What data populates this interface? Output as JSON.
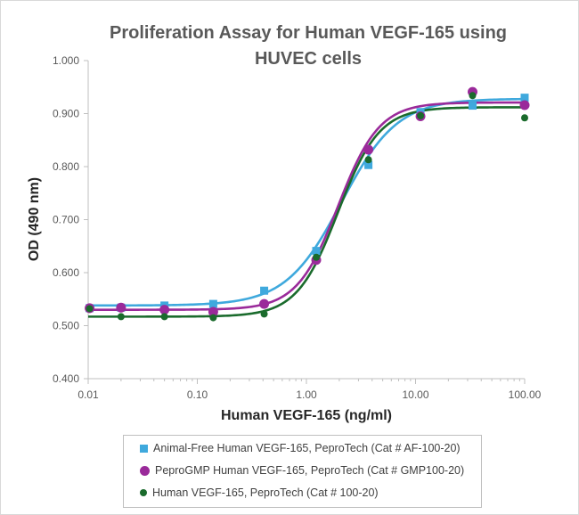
{
  "chart_data": {
    "type": "scatter",
    "title": "Proliferation Assay for Human VEGF-165 using HUVEC cells",
    "xlabel": "Human VEGF-165 (ng/ml)",
    "ylabel": "OD (490 nm)",
    "x_scale": "log",
    "xlim": [
      0.01,
      100
    ],
    "ylim": [
      0.4,
      1.0
    ],
    "x_ticks": [
      "0.01",
      "0.10",
      "1.00",
      "10.00",
      "100.00"
    ],
    "y_ticks": [
      "0.400",
      "0.500",
      "0.600",
      "0.700",
      "0.800",
      "0.900",
      "1.000"
    ],
    "grid": false,
    "legend_position": "bottom",
    "series": [
      {
        "name": "Animal-Free Human VEGF-165, PeproTech (Cat # AF-100-20)",
        "marker": "square",
        "color": "#3fa9dd",
        "x": [
          0.0103,
          0.02,
          0.05,
          0.14,
          0.41,
          1.23,
          3.7,
          11.1,
          33.3,
          100
        ],
        "y": [
          0.533,
          0.534,
          0.538,
          0.541,
          0.566,
          0.641,
          0.803,
          0.903,
          0.915,
          0.93
        ],
        "fit_curve": {
          "bottom": 0.538,
          "top": 0.928,
          "ec50": 2.1,
          "hill": 1.7
        }
      },
      {
        "name": "PeproGMP Human VEGF-165, PeproTech (Cat # GMP100-20)",
        "marker": "circle",
        "color": "#9a2a9a",
        "x": [
          0.0103,
          0.02,
          0.05,
          0.14,
          0.41,
          1.23,
          3.7,
          11.1,
          33.3,
          100
        ],
        "y": [
          0.533,
          0.534,
          0.53,
          0.526,
          0.541,
          0.624,
          0.832,
          0.895,
          0.941,
          0.916
        ],
        "fit_curve": {
          "bottom": 0.53,
          "top": 0.921,
          "ec50": 1.95,
          "hill": 2.3
        }
      },
      {
        "name": "Human VEGF-165, PeproTech (Cat # 100-20)",
        "marker": "dot",
        "color": "#1a6b2c",
        "x": [
          0.0103,
          0.02,
          0.05,
          0.14,
          0.41,
          1.23,
          3.7,
          11.1,
          33.3,
          100
        ],
        "y": [
          0.532,
          0.517,
          0.517,
          0.515,
          0.522,
          0.629,
          0.813,
          0.896,
          0.934,
          0.892
        ],
        "fit_curve": {
          "bottom": 0.517,
          "top": 0.912,
          "ec50": 1.95,
          "hill": 2.3
        }
      }
    ]
  }
}
